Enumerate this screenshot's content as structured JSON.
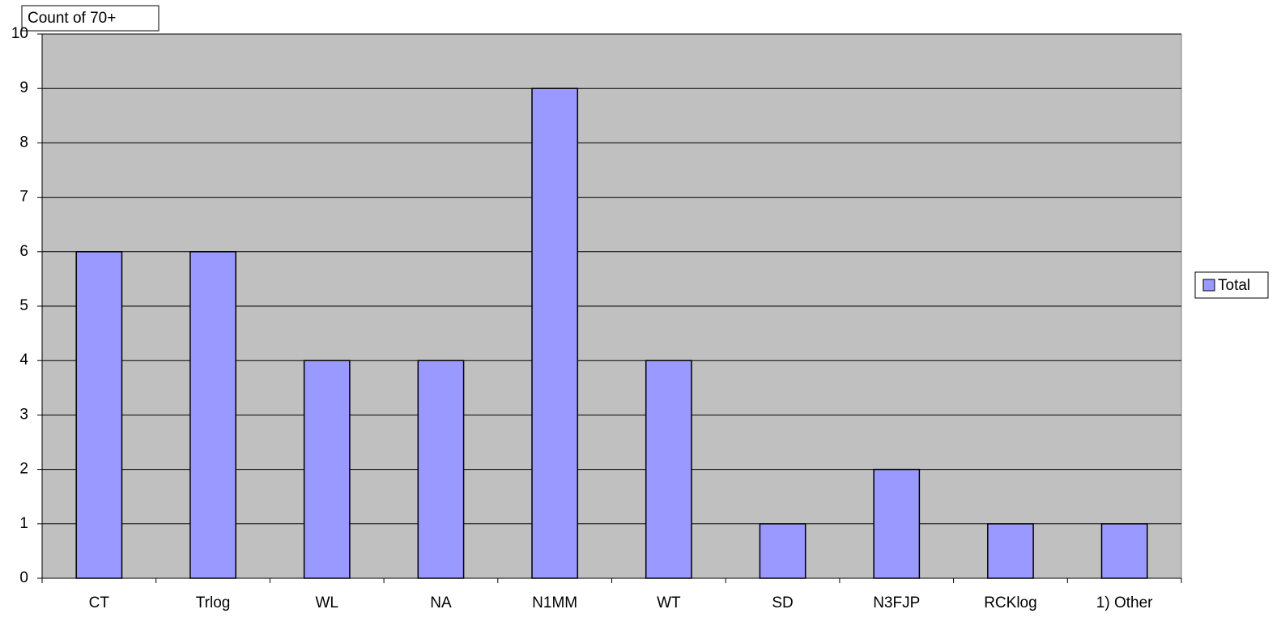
{
  "chart_data": {
    "type": "bar",
    "title": "Count of 70+",
    "categories": [
      "CT",
      "Trlog",
      "WL",
      "NA",
      "N1MM",
      "WT",
      "SD",
      "N3FJP",
      "RCKlog",
      "1) Other"
    ],
    "series": [
      {
        "name": "Total",
        "color": "#9999ff",
        "values": [
          6,
          6,
          4,
          4,
          9,
          4,
          1,
          2,
          1,
          1
        ]
      }
    ],
    "ylim": [
      0,
      10
    ],
    "yticks": [
      0,
      1,
      2,
      3,
      4,
      5,
      6,
      7,
      8,
      9,
      10
    ],
    "grid": true,
    "legend": "right"
  }
}
